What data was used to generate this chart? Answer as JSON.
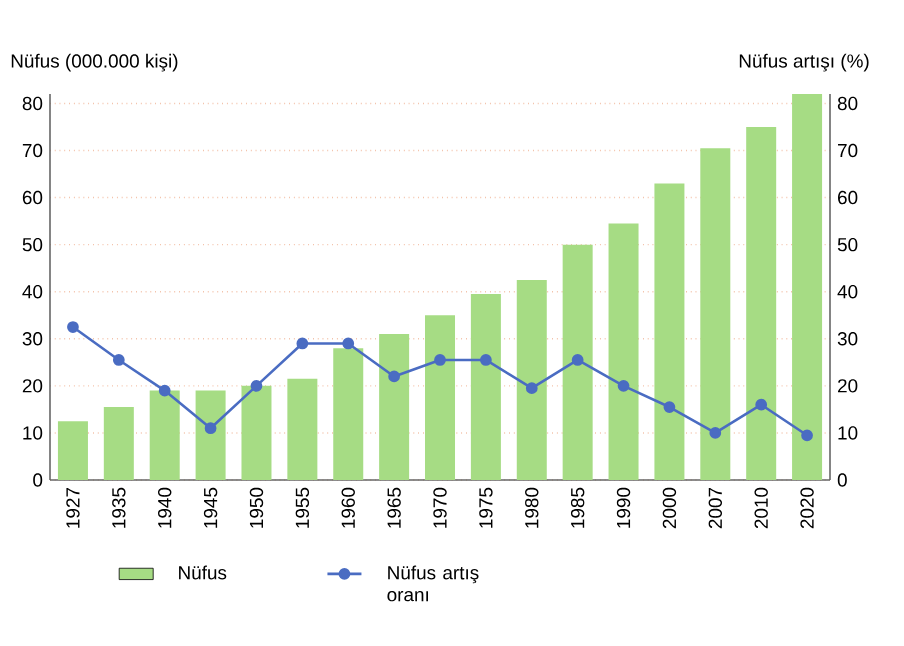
{
  "chart_data": {
    "type": "bar",
    "ylabel": "Nüfus (000.000 kişi)",
    "y2label": "Nüfus artışı (%)",
    "categories": [
      "1927",
      "1935",
      "1940",
      "1945",
      "1950",
      "1955",
      "1960",
      "1965",
      "1970",
      "1975",
      "1980",
      "1985",
      "1990",
      "2000",
      "2007",
      "2010",
      "2020"
    ],
    "series": [
      {
        "name": "Nüfus",
        "color": "#a6dc84",
        "values": [
          12.5,
          15.5,
          19,
          19,
          20,
          21.5,
          28,
          31,
          35,
          39.5,
          42.5,
          50,
          54.5,
          63,
          70.5,
          75,
          82
        ]
      },
      {
        "name": "Nüfus artış oranı",
        "type": "line",
        "axis": "y2",
        "color": "#4a6cc2",
        "marker": "circle",
        "values": [
          32.5,
          25.5,
          19,
          11,
          20,
          29,
          29,
          22,
          25.5,
          25.5,
          19.5,
          25.5,
          20,
          15.5,
          10,
          16,
          9.5
        ]
      }
    ],
    "ylim": [
      0,
      82
    ],
    "yticks": [
      0,
      10,
      20,
      30,
      40,
      50,
      60,
      70,
      80
    ],
    "y2lim": [
      0,
      82
    ],
    "y2ticks": [
      0,
      10,
      20,
      30,
      40,
      50,
      60,
      70,
      80
    ],
    "grid": "y",
    "legend": "bottom"
  }
}
